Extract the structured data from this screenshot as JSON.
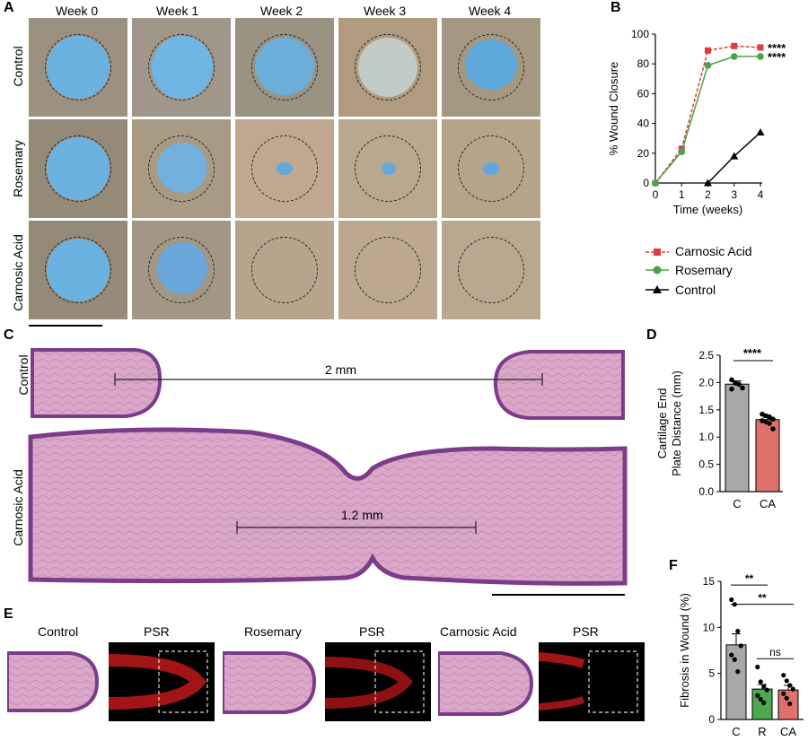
{
  "panels": {
    "a": "A",
    "b": "B",
    "c": "C",
    "d": "D",
    "e": "E",
    "f": "F"
  },
  "panel_a": {
    "columns": [
      "Week 0",
      "Week 1",
      "Week 2",
      "Week 3",
      "Week 4"
    ],
    "rows": [
      "Control",
      "Rosemary",
      "Carnosic Acid"
    ]
  },
  "panel_c": {
    "rows": [
      "Control",
      "Carnosic Acid"
    ],
    "measure_control": "2 mm",
    "measure_ca": "1.2 mm"
  },
  "panel_e": {
    "labels": [
      "Control",
      "PSR",
      "Rosemary",
      "PSR",
      "Carnosic Acid",
      "PSR"
    ]
  },
  "legend_b": [
    "Carnosic Acid",
    "Rosemary",
    "Control"
  ],
  "colors": {
    "red": "#e03a3e",
    "green": "#4aa34a",
    "black": "#000000",
    "gray": "#a8a8a8",
    "salmon": "#e0706c",
    "green_bar": "#4caa4c"
  },
  "chart_data": [
    {
      "id": "B",
      "type": "line",
      "xlabel": "Time (weeks)",
      "ylabel": "% Wound Closure",
      "xlim": [
        0,
        4
      ],
      "ylim": [
        0,
        100
      ],
      "xticks": [
        "0",
        "1",
        "2",
        "3",
        "4"
      ],
      "yticks": [
        "0",
        "20",
        "40",
        "60",
        "80",
        "100"
      ],
      "x": [
        0,
        1,
        2,
        3,
        4
      ],
      "series": [
        {
          "name": "Carnosic Acid",
          "values": [
            0,
            23,
            89,
            92,
            91
          ],
          "err": [
            0,
            2,
            2,
            1,
            1
          ],
          "significance": "****"
        },
        {
          "name": "Rosemary",
          "values": [
            0,
            21,
            79,
            85,
            85
          ],
          "err": [
            0,
            2,
            2,
            1,
            1
          ],
          "significance": "****"
        },
        {
          "name": "Control",
          "x": [
            2,
            3,
            4
          ],
          "values": [
            0,
            18,
            34
          ],
          "err": [
            2,
            1,
            1
          ]
        }
      ]
    },
    {
      "id": "D",
      "type": "bar",
      "ylabel": "Cartilage End\nPlate Distance (mm)",
      "ylabel_lines": [
        "Cartilage End",
        "Plate Distance (mm)"
      ],
      "categories": [
        "C",
        "CA"
      ],
      "values": [
        1.97,
        1.32
      ],
      "err": [
        0.06,
        0.04
      ],
      "ylim": [
        0,
        2.5
      ],
      "yticks": [
        "0.0",
        "0.5",
        "1.0",
        "1.5",
        "2.0",
        "2.5"
      ],
      "points": [
        [
          2.05,
          1.99,
          1.97,
          1.9,
          1.88
        ],
        [
          1.42,
          1.39,
          1.37,
          1.33,
          1.3,
          1.28,
          1.25,
          1.15
        ]
      ],
      "significance": "****"
    },
    {
      "id": "F",
      "type": "bar",
      "ylabel": "Fibrosis in Wound (%)",
      "categories": [
        "C",
        "R",
        "CA"
      ],
      "values": [
        8.1,
        3.3,
        3.2
      ],
      "err": [
        1.2,
        0.5,
        0.5
      ],
      "ylim": [
        0,
        15
      ],
      "yticks": [
        "0",
        "5",
        "10",
        "15"
      ],
      "points": [
        [
          13.0,
          12.5,
          9.6,
          8.0,
          7.0,
          6.5,
          5.2
        ],
        [
          5.7,
          4.1,
          3.6,
          3.2,
          2.6,
          2.2,
          1.8
        ],
        [
          4.8,
          4.2,
          3.7,
          3.3,
          2.8,
          2.3,
          1.7
        ]
      ],
      "comparisons": [
        "**",
        "**",
        "ns"
      ]
    }
  ]
}
